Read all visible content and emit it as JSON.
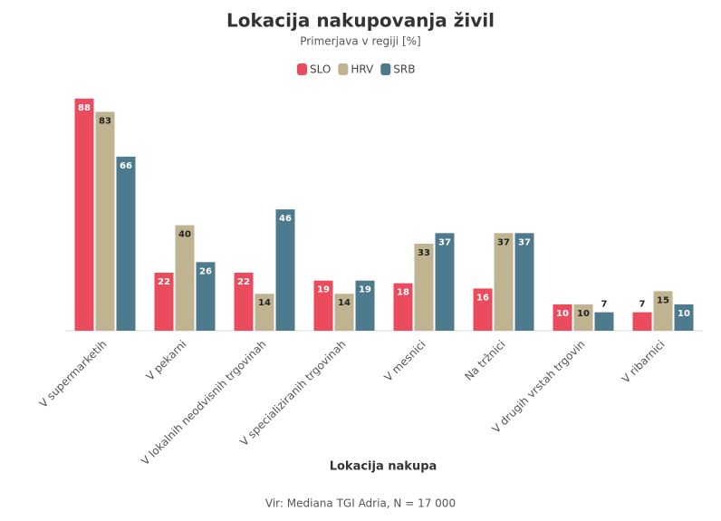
{
  "chart_data": {
    "type": "bar",
    "title": "Lokacija nakupovanja živil",
    "subtitle": "Primerjava v regiji [%]",
    "x_label": "Lokacija nakupa",
    "source": "Vir: Mediana TGI Adria, N = 17 000",
    "categories": [
      "V supermarketih",
      "V pekarni",
      "V lokalnih neodvisnih trgovinah",
      "V specializiranih trgovinah",
      "V mesnici",
      "Na tržnici",
      "V drugih vrstah trgovin",
      "V ribarnici"
    ],
    "series": [
      {
        "name": "SLO",
        "color": "#ea4c5e",
        "label_color": "#ffffff",
        "values": [
          88,
          22,
          22,
          19,
          18,
          16,
          10,
          7
        ]
      },
      {
        "name": "HRV",
        "color": "#bfb48f",
        "label_color": "#222222",
        "values": [
          83,
          40,
          14,
          14,
          33,
          37,
          10,
          15
        ]
      },
      {
        "name": "SRB",
        "color": "#4e7a8d",
        "label_color": "#ffffff",
        "values": [
          66,
          26,
          46,
          19,
          37,
          37,
          7,
          10
        ]
      }
    ],
    "ylim": [
      0,
      90
    ]
  }
}
